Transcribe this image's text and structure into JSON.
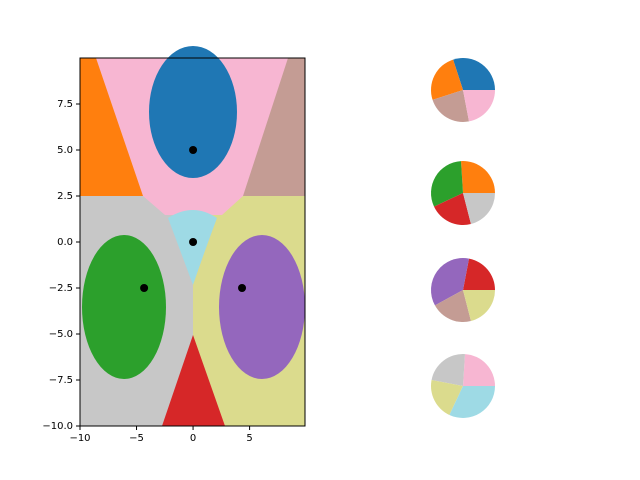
{
  "chart_data": [
    {
      "type": "scatter",
      "x": [
        0,
        0,
        -4.33,
        4.33
      ],
      "y": [
        5,
        0,
        -2.5,
        -2.5
      ],
      "color": "#000000",
      "xlim": [
        -10,
        9.9
      ],
      "ylim": [
        -10,
        10
      ],
      "xticks": [
        {
          "value": -10,
          "label": "−10"
        },
        {
          "value": -5,
          "label": "−5"
        },
        0,
        5
      ],
      "yticks": [
        {
          "value": -10,
          "label": "−10.0"
        },
        {
          "value": -7.5,
          "label": "−7.5"
        },
        {
          "value": -5,
          "label": "−5.0"
        },
        {
          "value": -2.5,
          "label": "−2.5"
        },
        {
          "value": 0,
          "label": "0.0"
        },
        {
          "value": 2.5,
          "label": "2.5"
        },
        {
          "value": 5,
          "label": "5.0"
        },
        {
          "value": 7.5,
          "label": "7.5"
        }
      ]
    },
    {
      "type": "pie",
      "values": [
        30,
        25,
        23,
        22
      ],
      "colors": [
        "#1f77b4",
        "#ff7f0e",
        "#c49c94",
        "#f7b6d2"
      ]
    },
    {
      "type": "pie",
      "values": [
        26,
        31,
        22,
        21
      ],
      "colors": [
        "#ff7f0e",
        "#2ca02c",
        "#d62728",
        "#c7c7c7"
      ]
    },
    {
      "type": "pie",
      "values": [
        22,
        36,
        21,
        21
      ],
      "colors": [
        "#d62728",
        "#9467bd",
        "#c49c94",
        "#dbdb8d"
      ]
    },
    {
      "type": "pie",
      "values": [
        24,
        23,
        21,
        32
      ],
      "colors": [
        "#f7b6d2",
        "#c7c7c7",
        "#dbdb8d",
        "#9edae5"
      ]
    }
  ]
}
